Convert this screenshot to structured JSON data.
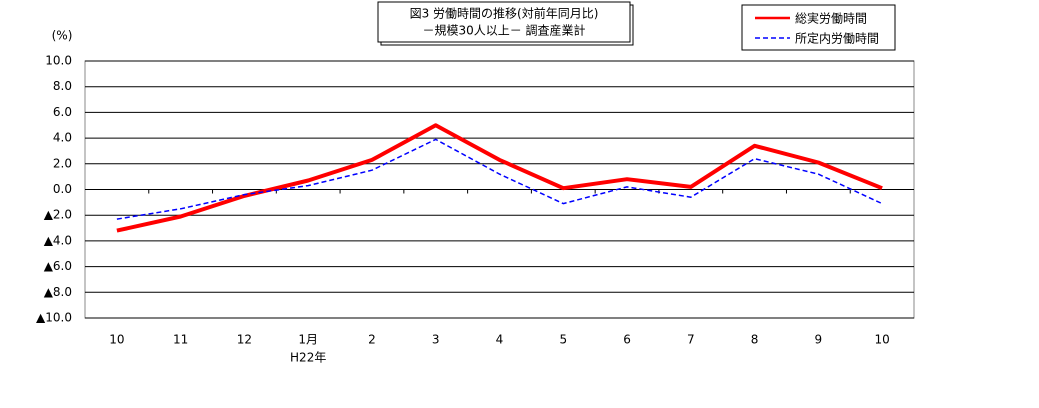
{
  "chart_data": {
    "type": "line",
    "title": [
      "図3 労働時間の推移(対前年同月比)",
      "－規模30人以上－ 調査産業計"
    ],
    "ylabel": "(%)",
    "categories": [
      "10",
      "11",
      "12",
      "1月",
      "2",
      "3",
      "4",
      "5",
      "6",
      "7",
      "8",
      "9",
      "10"
    ],
    "annotations": [
      {
        "text": "H22年",
        "category_index": 3
      }
    ],
    "series": [
      {
        "name": "総実労働時間",
        "color": "#ff0000",
        "dash": "solid",
        "values": [
          -3.2,
          -2.1,
          -0.5,
          0.7,
          2.3,
          5.0,
          2.3,
          0.1,
          0.8,
          0.2,
          3.4,
          2.1,
          0.1
        ]
      },
      {
        "name": "所定内労働時間",
        "color": "#0000ff",
        "dash": "dashed",
        "values": [
          -2.3,
          -1.5,
          -0.4,
          0.3,
          1.5,
          3.9,
          1.2,
          -1.1,
          0.2,
          -0.6,
          2.4,
          1.2,
          -1.1
        ]
      }
    ],
    "ylim": [
      -10,
      10
    ],
    "yticks": [
      {
        "value": 10,
        "label": "10.0"
      },
      {
        "value": 8,
        "label": "8.0"
      },
      {
        "value": 6,
        "label": "6.0"
      },
      {
        "value": 4,
        "label": "4.0"
      },
      {
        "value": 2,
        "label": "2.0"
      },
      {
        "value": 0,
        "label": "0.0"
      },
      {
        "value": -2,
        "label": "▲2.0"
      },
      {
        "value": -4,
        "label": "▲4.0"
      },
      {
        "value": -6,
        "label": "▲6.0"
      },
      {
        "value": -8,
        "label": "▲8.0"
      },
      {
        "value": -10,
        "label": "▲10.0"
      }
    ],
    "grid": true,
    "legend": "top-right"
  }
}
